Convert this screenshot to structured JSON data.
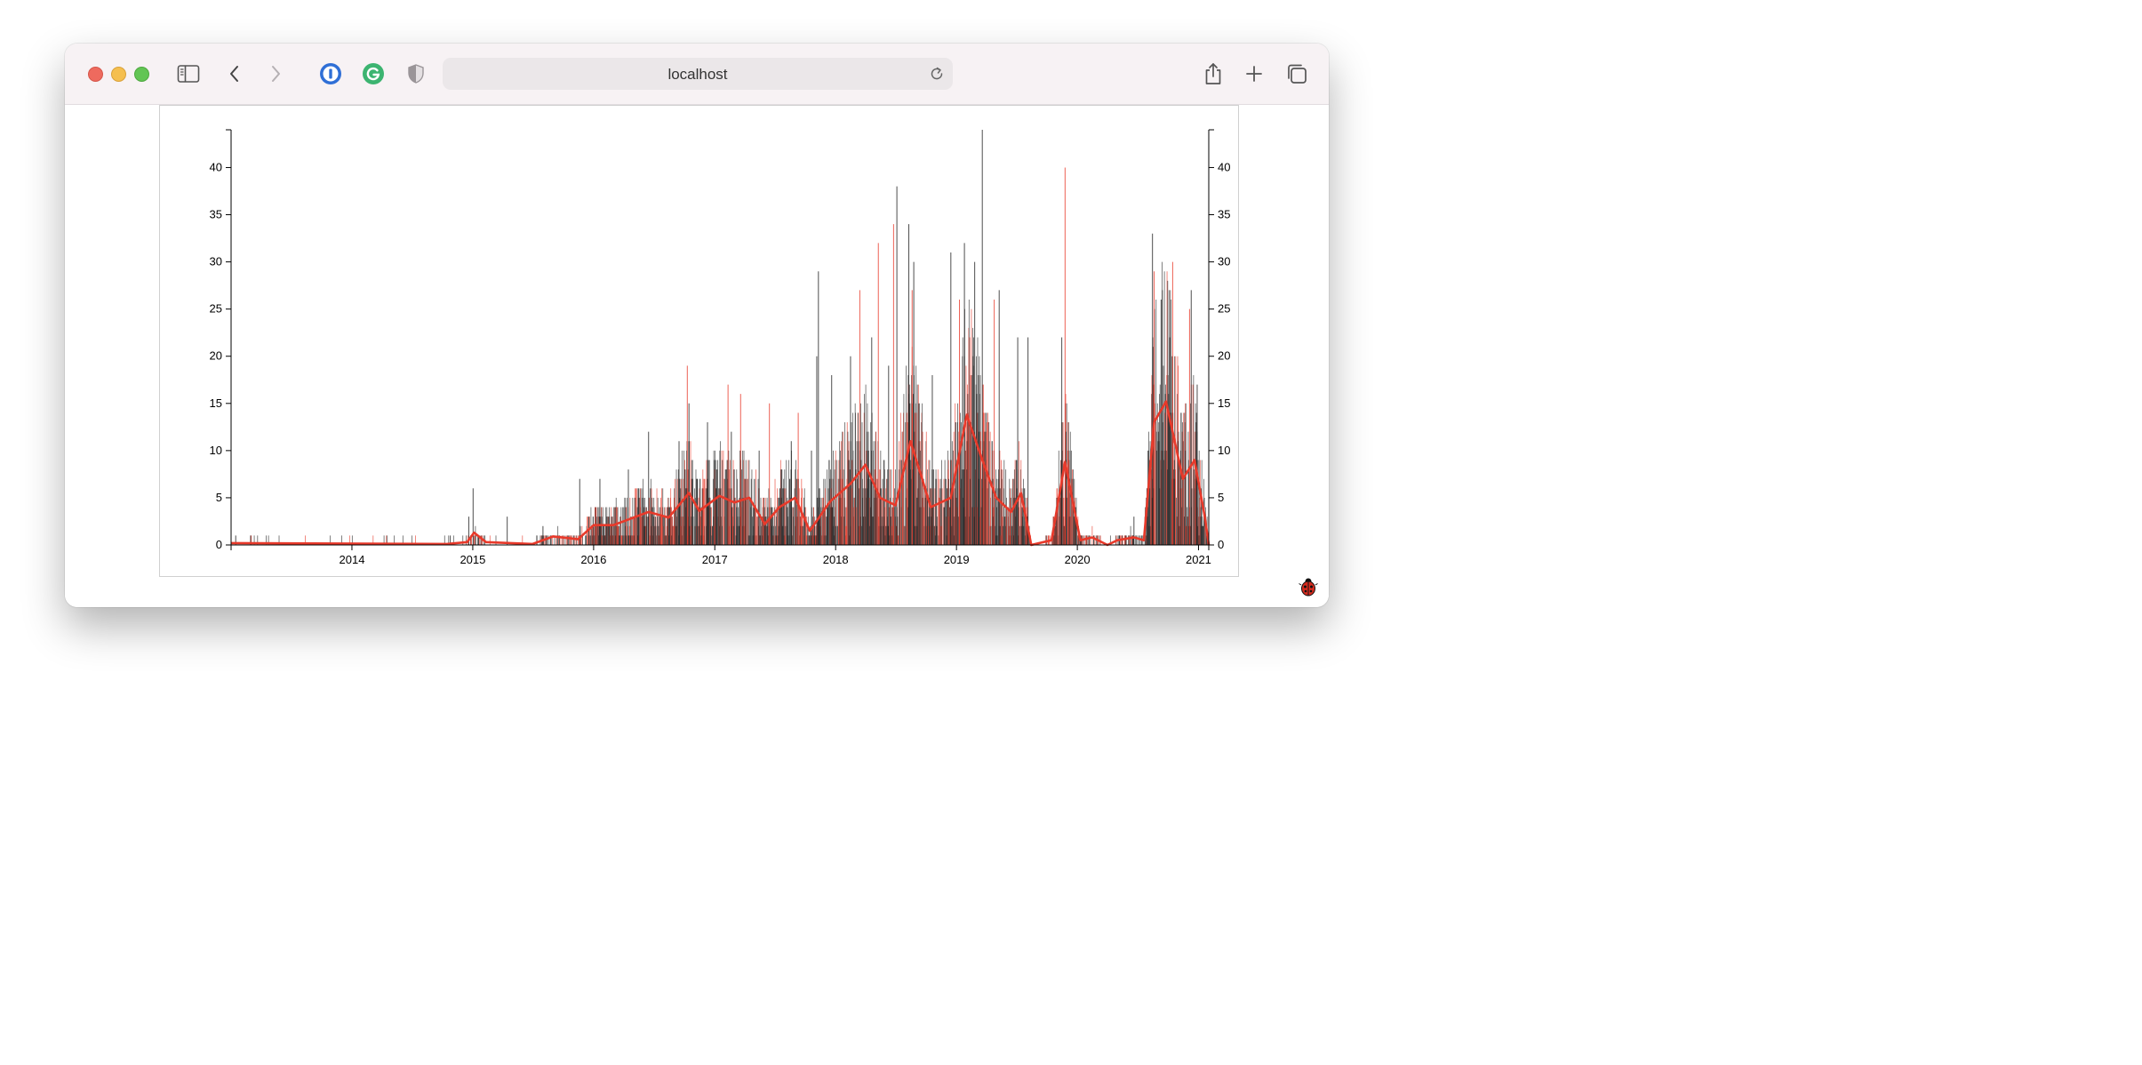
{
  "browser": {
    "address": "localhost"
  },
  "colors": {
    "bar_primary": "#222222",
    "bar_secondary": "#e8392a",
    "line": "#e8392a",
    "accent_blue": "#2f6fd6",
    "grammarly_green": "#3cb470"
  },
  "icons": [
    "sidebar-icon",
    "back-icon",
    "forward-icon",
    "1password-icon",
    "grammarly-icon",
    "shield-icon",
    "reload-icon",
    "share-icon",
    "plus-icon",
    "tabs-icon",
    "ladybug-icon"
  ],
  "chart_data": {
    "type": "bar",
    "title": "",
    "xlabel": "",
    "ylabel": "",
    "x_domain": [
      "2013-01-01",
      "2021-02-01"
    ],
    "ylim": [
      0,
      44
    ],
    "y_ticks": [
      0,
      5,
      10,
      15,
      20,
      25,
      30,
      35,
      40
    ],
    "x_ticks": [
      "2014",
      "2015",
      "2016",
      "2017",
      "2018",
      "2019",
      "2020",
      "2021"
    ],
    "axes": "left and right y axes, bottom x axis",
    "grid": false,
    "legend": "none",
    "series": [
      {
        "kind": "daily bars (dark)",
        "peaks": [
          {
            "date": "2013-01-15",
            "value": 1
          },
          {
            "date": "2013-03-01",
            "value": 1
          },
          {
            "date": "2014-10-25",
            "value": 1
          },
          {
            "date": "2014-12-20",
            "value": 3
          },
          {
            "date": "2015-01-02",
            "value": 6
          },
          {
            "date": "2015-04-15",
            "value": 3
          },
          {
            "date": "2015-08-01",
            "value": 2
          },
          {
            "date": "2015-11-20",
            "value": 7
          },
          {
            "date": "2016-01-20",
            "value": 7
          },
          {
            "date": "2016-04-15",
            "value": 8
          },
          {
            "date": "2016-06-15",
            "value": 12
          },
          {
            "date": "2016-09-15",
            "value": 11
          },
          {
            "date": "2016-10-15",
            "value": 15
          },
          {
            "date": "2016-12-10",
            "value": 13
          },
          {
            "date": "2017-02-20",
            "value": 12
          },
          {
            "date": "2017-05-15",
            "value": 10
          },
          {
            "date": "2017-08-20",
            "value": 11
          },
          {
            "date": "2017-10-20",
            "value": 10
          },
          {
            "date": "2017-11-05",
            "value": 20
          },
          {
            "date": "2017-11-10",
            "value": 29
          },
          {
            "date": "2017-12-20",
            "value": 18
          },
          {
            "date": "2018-02-15",
            "value": 20
          },
          {
            "date": "2018-04-20",
            "value": 22
          },
          {
            "date": "2018-06-10",
            "value": 19
          },
          {
            "date": "2018-07-05",
            "value": 38
          },
          {
            "date": "2018-08-10",
            "value": 34
          },
          {
            "date": "2018-08-25",
            "value": 30
          },
          {
            "date": "2018-10-20",
            "value": 18
          },
          {
            "date": "2018-12-15",
            "value": 31
          },
          {
            "date": "2019-01-25",
            "value": 32
          },
          {
            "date": "2019-02-25",
            "value": 30
          },
          {
            "date": "2019-03-20",
            "value": 44
          },
          {
            "date": "2019-05-10",
            "value": 27
          },
          {
            "date": "2019-07-05",
            "value": 22
          },
          {
            "date": "2019-08-05",
            "value": 22
          },
          {
            "date": "2019-11-15",
            "value": 22
          },
          {
            "date": "2020-06-20",
            "value": 3
          },
          {
            "date": "2020-08-15",
            "value": 33
          },
          {
            "date": "2020-09-10",
            "value": 26
          },
          {
            "date": "2020-12-10",
            "value": 27
          },
          {
            "date": "2020-12-28",
            "value": 17
          }
        ]
      },
      {
        "kind": "daily bars (red)",
        "peaks": [
          {
            "date": "2016-10-10",
            "value": 19
          },
          {
            "date": "2017-02-10",
            "value": 17
          },
          {
            "date": "2017-03-20",
            "value": 16
          },
          {
            "date": "2017-06-15",
            "value": 15
          },
          {
            "date": "2017-09-10",
            "value": 14
          },
          {
            "date": "2018-03-15",
            "value": 27
          },
          {
            "date": "2018-05-10",
            "value": 32
          },
          {
            "date": "2018-06-25",
            "value": 34
          },
          {
            "date": "2018-08-20",
            "value": 27
          },
          {
            "date": "2019-01-10",
            "value": 26
          },
          {
            "date": "2019-04-25",
            "value": 26
          },
          {
            "date": "2019-11-25",
            "value": 40
          },
          {
            "date": "2020-08-20",
            "value": 29
          },
          {
            "date": "2020-10-15",
            "value": 30
          },
          {
            "date": "2020-12-05",
            "value": 25
          }
        ]
      },
      {
        "kind": "moving average line",
        "points": [
          {
            "date": "2013-01-01",
            "value": 0.2
          },
          {
            "date": "2014-10-15",
            "value": 0.1
          },
          {
            "date": "2014-12-15",
            "value": 0.3
          },
          {
            "date": "2015-01-05",
            "value": 1.3
          },
          {
            "date": "2015-02-10",
            "value": 0.3
          },
          {
            "date": "2015-07-01",
            "value": 0.1
          },
          {
            "date": "2015-09-01",
            "value": 0.9
          },
          {
            "date": "2015-11-15",
            "value": 0.6
          },
          {
            "date": "2016-01-01",
            "value": 2.1
          },
          {
            "date": "2016-03-01",
            "value": 2.1
          },
          {
            "date": "2016-06-15",
            "value": 3.5
          },
          {
            "date": "2016-08-15",
            "value": 2.9
          },
          {
            "date": "2016-10-15",
            "value": 5.5
          },
          {
            "date": "2016-11-15",
            "value": 3.6
          },
          {
            "date": "2017-01-15",
            "value": 5.2
          },
          {
            "date": "2017-03-01",
            "value": 4.5
          },
          {
            "date": "2017-04-15",
            "value": 5.0
          },
          {
            "date": "2017-06-01",
            "value": 2.2
          },
          {
            "date": "2017-07-15",
            "value": 4.0
          },
          {
            "date": "2017-09-01",
            "value": 5.0
          },
          {
            "date": "2017-10-15",
            "value": 1.5
          },
          {
            "date": "2017-12-15",
            "value": 4.6
          },
          {
            "date": "2018-02-15",
            "value": 6.5
          },
          {
            "date": "2018-04-01",
            "value": 8.5
          },
          {
            "date": "2018-05-15",
            "value": 5.0
          },
          {
            "date": "2018-07-01",
            "value": 4.2
          },
          {
            "date": "2018-08-15",
            "value": 11.0
          },
          {
            "date": "2018-09-15",
            "value": 7.5
          },
          {
            "date": "2018-10-15",
            "value": 4.0
          },
          {
            "date": "2018-12-15",
            "value": 5.0
          },
          {
            "date": "2019-02-01",
            "value": 13.8
          },
          {
            "date": "2019-03-20",
            "value": 9.0
          },
          {
            "date": "2019-05-01",
            "value": 5.0
          },
          {
            "date": "2019-06-15",
            "value": 3.5
          },
          {
            "date": "2019-07-15",
            "value": 5.5
          },
          {
            "date": "2019-08-15",
            "value": 0.0
          },
          {
            "date": "2019-10-15",
            "value": 0.5
          },
          {
            "date": "2019-11-25",
            "value": 8.8
          },
          {
            "date": "2020-01-10",
            "value": 0.5
          },
          {
            "date": "2020-02-15",
            "value": 0.8
          },
          {
            "date": "2020-04-01",
            "value": 0.0
          },
          {
            "date": "2020-05-01",
            "value": 0.5
          },
          {
            "date": "2020-06-20",
            "value": 0.8
          },
          {
            "date": "2020-07-20",
            "value": 0.5
          },
          {
            "date": "2020-08-20",
            "value": 13.0
          },
          {
            "date": "2020-09-25",
            "value": 15.2
          },
          {
            "date": "2020-11-15",
            "value": 7.0
          },
          {
            "date": "2020-12-20",
            "value": 9.0
          },
          {
            "date": "2021-01-20",
            "value": 3.0
          },
          {
            "date": "2021-02-01",
            "value": 0.0
          }
        ]
      }
    ]
  }
}
